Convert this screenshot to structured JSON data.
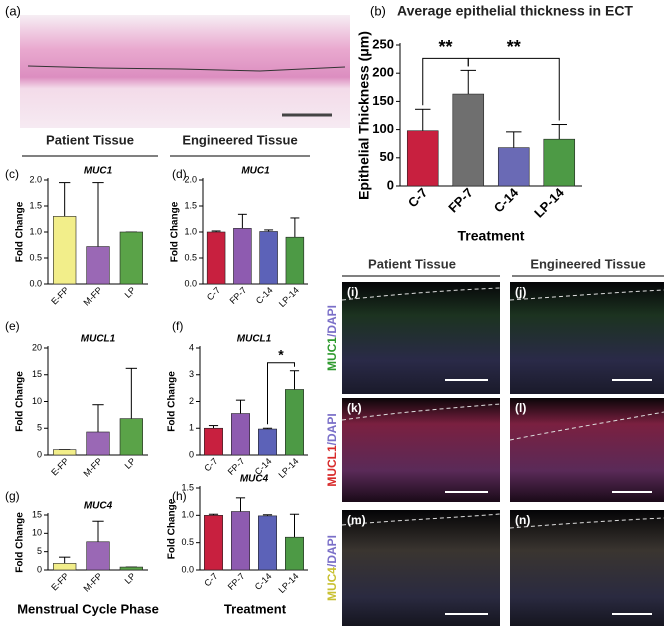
{
  "figure": {
    "panels": [
      "(a)",
      "(i)",
      "(j)",
      "(k)",
      "(l)",
      "(m)",
      "(n)"
    ],
    "headers": [
      "Patient Tissue",
      "Engineered Tissue"
    ],
    "image_headers": [
      "Patient Tissue",
      "Engineered Tissue"
    ],
    "footers": [
      "Menstrual Cycle Phase",
      "Treatment"
    ],
    "stains": [
      [
        "MUC1",
        "/DAPI"
      ],
      [
        "MUCL1",
        "/DAPI"
      ],
      [
        "MUC4",
        "/DAPI"
      ]
    ]
  },
  "chart_data": [
    {
      "type": "bar",
      "panel": "(b)",
      "title": "Average epithelial thickness in ECT",
      "categories": [
        "C-7",
        "FP-7",
        "C-14",
        "LP-14"
      ],
      "values": [
        98,
        163,
        68,
        83
      ],
      "errors": [
        38,
        42,
        28,
        26
      ],
      "colors": [
        "#c8203f",
        "#6f6f6f",
        "#6a6ab5",
        "#4d9a45"
      ],
      "ylim": [
        0,
        250
      ],
      "yticks": [
        0,
        50,
        100,
        150,
        200,
        250
      ],
      "ylabel": "Epithelial Thickness (μm)",
      "xlabel": "Treatment",
      "annotations": [
        "**",
        "**"
      ]
    },
    {
      "type": "bar",
      "panel": "(c)",
      "title": "MUC1",
      "categories": [
        "E-FP",
        "M-FP",
        "LP"
      ],
      "values": [
        1.3,
        0.72,
        1.0
      ],
      "errors": [
        0.65,
        1.23,
        0
      ],
      "colors": [
        "#f2ee8a",
        "#9a68b5",
        "#5aa348"
      ],
      "ylim": [
        0,
        2
      ],
      "yticks": [
        {
          "value": 0,
          "label": "0.0"
        },
        {
          "value": 0.5,
          "label": "0.5"
        },
        {
          "value": 1,
          "label": "1.0"
        },
        {
          "value": 1.5,
          "label": "1.5"
        },
        {
          "value": 2,
          "label": "2.0"
        }
      ],
      "ylabel": "Fold Change"
    },
    {
      "type": "bar",
      "panel": "(d)",
      "title": "MUC1",
      "categories": [
        "C-7",
        "FP-7",
        "C-14",
        "LP-14"
      ],
      "values": [
        1.0,
        1.07,
        1.01,
        0.9
      ],
      "errors": [
        0.02,
        0.27,
        0.03,
        0.37
      ],
      "colors": [
        "#c8203f",
        "#8e5bb0",
        "#5c62b8",
        "#4d9a45"
      ],
      "ylim": [
        0,
        2
      ],
      "yticks": [
        {
          "value": 0,
          "label": "0.0"
        },
        {
          "value": 0.5,
          "label": "0.5"
        },
        {
          "value": 1,
          "label": "1.0"
        },
        {
          "value": 1.5,
          "label": "1.5"
        },
        {
          "value": 2,
          "label": "2.0"
        }
      ],
      "ylabel": "Fold Change"
    },
    {
      "type": "bar",
      "panel": "(e)",
      "title": "MUCL1",
      "categories": [
        "E-FP",
        "M-FP",
        "LP"
      ],
      "values": [
        1.0,
        4.3,
        6.8
      ],
      "errors": [
        0,
        5.1,
        9.4
      ],
      "colors": [
        "#f2ee8a",
        "#9a68b5",
        "#5aa348"
      ],
      "ylim": [
        0,
        20
      ],
      "yticks": [
        0,
        5,
        10,
        15,
        20
      ],
      "ylabel": "Fold Change"
    },
    {
      "type": "bar",
      "panel": "(f)",
      "title": "MUCL1",
      "categories": [
        "C-7",
        "FP-7",
        "C-14",
        "LP-14"
      ],
      "values": [
        1.0,
        1.55,
        0.97,
        2.45
      ],
      "errors": [
        0.1,
        0.5,
        0.03,
        0.7
      ],
      "colors": [
        "#c8203f",
        "#8e5bb0",
        "#5c62b8",
        "#4d9a45"
      ],
      "ylim": [
        0,
        4
      ],
      "yticks": [
        0,
        1,
        2,
        3,
        4
      ],
      "ylabel": "Fold Change",
      "annotations": [
        "*"
      ]
    },
    {
      "type": "bar",
      "panel": "(g)",
      "title": "MUC4",
      "categories": [
        "E-FP",
        "M-FP",
        "LP"
      ],
      "values": [
        1.8,
        7.7,
        0.8
      ],
      "errors": [
        1.7,
        5.6,
        0
      ],
      "colors": [
        "#f2ee8a",
        "#9a68b5",
        "#5aa348"
      ],
      "ylim": [
        0,
        15
      ],
      "yticks": [
        0,
        5,
        10,
        15
      ],
      "ylabel": "Fold Change"
    },
    {
      "type": "bar",
      "panel": "(h)",
      "title": "MUC4",
      "categories": [
        "C-7",
        "FP-7",
        "C-14",
        "LP-14"
      ],
      "values": [
        1.0,
        1.07,
        0.99,
        0.6
      ],
      "errors": [
        0.02,
        0.25,
        0.02,
        0.42
      ],
      "colors": [
        "#c8203f",
        "#8e5bb0",
        "#5c62b8",
        "#4d9a45"
      ],
      "ylim": [
        0,
        1.5
      ],
      "yticks": [
        {
          "value": 0,
          "label": "0.0"
        },
        {
          "value": 0.5,
          "label": "0.5"
        },
        {
          "value": 1,
          "label": "1.0"
        },
        {
          "value": 1.5,
          "label": "1.5"
        }
      ],
      "ylabel": "Fold Change"
    }
  ]
}
